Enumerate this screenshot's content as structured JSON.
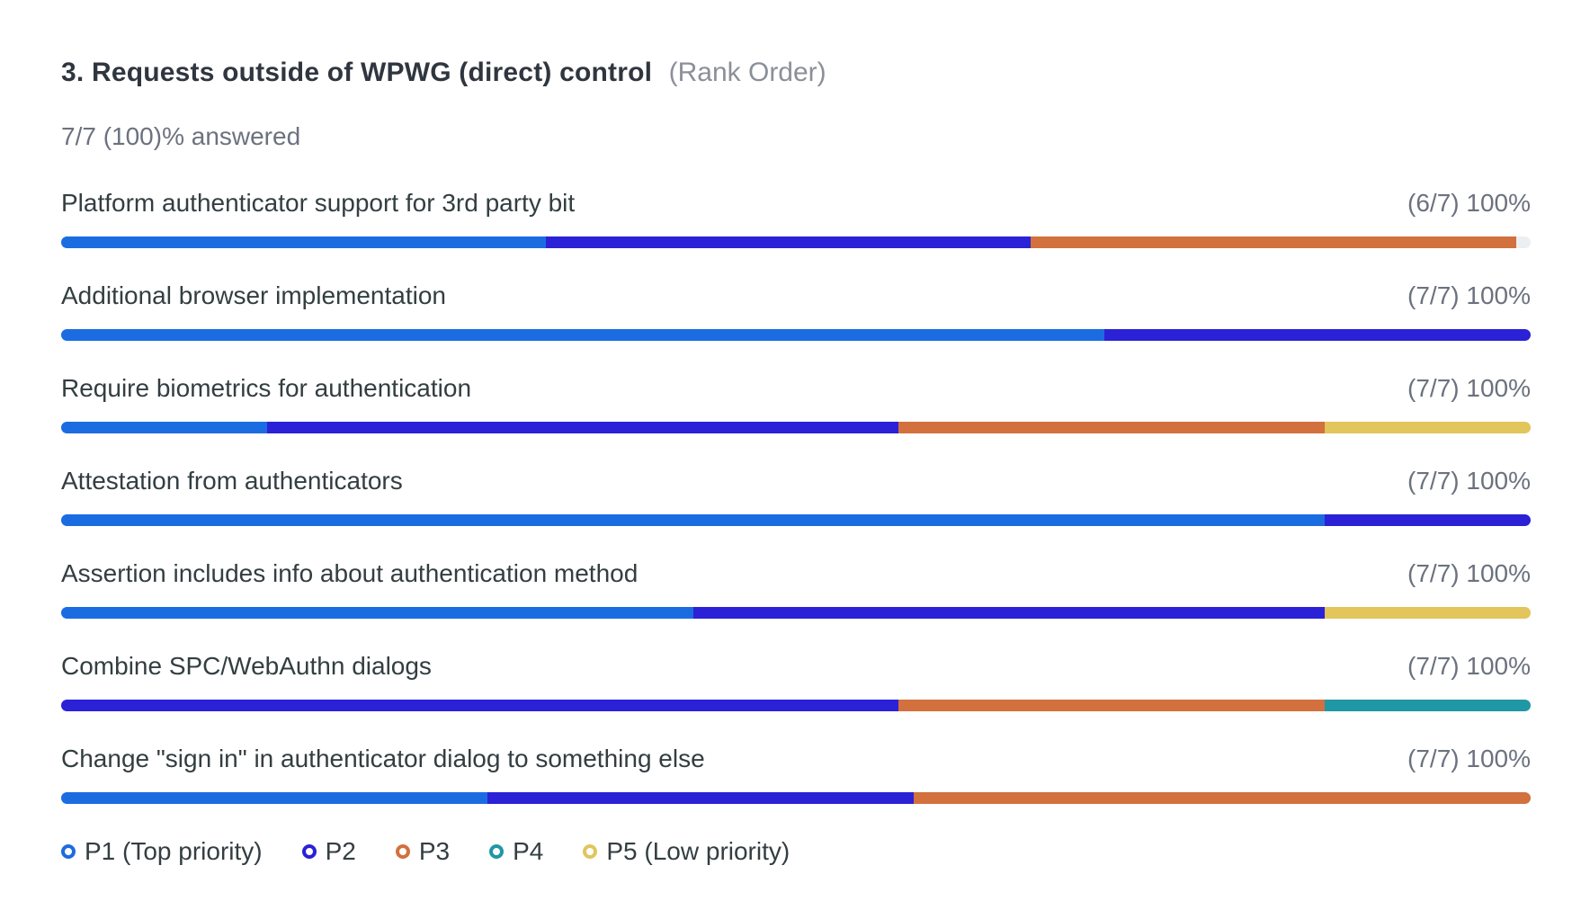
{
  "chart_data": {
    "type": "bar",
    "variant": "horizontal-stacked-rank-order",
    "title": "3. Requests outside of WPWG (direct) control",
    "subtitle": "(Rank Order)",
    "answered": "7/7 (100)% answered",
    "track_color": "#ECEFF2",
    "legend_position": "bottom",
    "priorities": [
      {
        "id": "P1",
        "label": "P1 (Top priority)",
        "color": "#1B6CE1"
      },
      {
        "id": "P2",
        "label": "P2",
        "color": "#2B21D6"
      },
      {
        "id": "P3",
        "label": "P3",
        "color": "#D2703E"
      },
      {
        "id": "P4",
        "label": "P4",
        "color": "#1F97A4"
      },
      {
        "id": "P5",
        "label": "P5 (Low priority)",
        "color": "#E2C55B"
      }
    ],
    "rows": [
      {
        "label": "Platform authenticator support for 3rd party bit",
        "stat": "(6/7) 100%",
        "segments": [
          {
            "priority": "P1",
            "pct": 33
          },
          {
            "priority": "P2",
            "pct": 33
          },
          {
            "priority": "P3",
            "pct": 33
          }
        ]
      },
      {
        "label": "Additional browser implementation",
        "stat": "(7/7) 100%",
        "segments": [
          {
            "priority": "P1",
            "pct": 71
          },
          {
            "priority": "P2",
            "pct": 29
          }
        ]
      },
      {
        "label": "Require biometrics for authentication",
        "stat": "(7/7) 100%",
        "segments": [
          {
            "priority": "P1",
            "pct": 14
          },
          {
            "priority": "P2",
            "pct": 43
          },
          {
            "priority": "P3",
            "pct": 29
          },
          {
            "priority": "P5",
            "pct": 14
          }
        ]
      },
      {
        "label": "Attestation from authenticators",
        "stat": "(7/7) 100%",
        "segments": [
          {
            "priority": "P1",
            "pct": 86
          },
          {
            "priority": "P2",
            "pct": 14
          }
        ]
      },
      {
        "label": "Assertion includes info about authentication method",
        "stat": "(7/7) 100%",
        "segments": [
          {
            "priority": "P1",
            "pct": 43
          },
          {
            "priority": "P2",
            "pct": 43
          },
          {
            "priority": "P5",
            "pct": 14
          }
        ]
      },
      {
        "label": "Combine SPC/WebAuthn dialogs",
        "stat": "(7/7) 100%",
        "segments": [
          {
            "priority": "P2",
            "pct": 57
          },
          {
            "priority": "P3",
            "pct": 29
          },
          {
            "priority": "P4",
            "pct": 14
          }
        ]
      },
      {
        "label": "Change \"sign in\" in authenticator dialog to something else",
        "stat": "(7/7) 100%",
        "segments": [
          {
            "priority": "P1",
            "pct": 29
          },
          {
            "priority": "P2",
            "pct": 29
          },
          {
            "priority": "P3",
            "pct": 42
          }
        ]
      }
    ]
  }
}
